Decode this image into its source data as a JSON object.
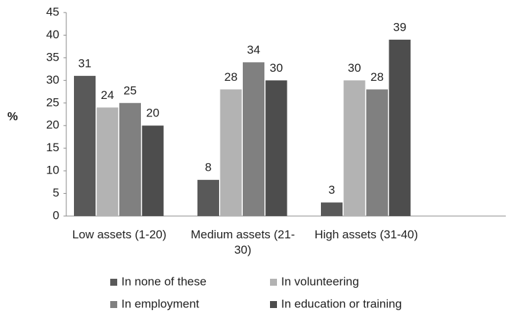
{
  "chart_data": {
    "type": "bar",
    "categories": [
      "Low assets (1-20)",
      "Medium assets (21-30)",
      "High assets (31-40)"
    ],
    "series": [
      {
        "name": "In none of these",
        "color": "#595959",
        "values": [
          31,
          8,
          3
        ]
      },
      {
        "name": "In volunteering",
        "color": "#b3b3b3",
        "values": [
          24,
          28,
          30
        ]
      },
      {
        "name": "In employment",
        "color": "#808080",
        "values": [
          25,
          34,
          28
        ]
      },
      {
        "name": "In education or training",
        "color": "#4d4d4d",
        "values": [
          20,
          30,
          39
        ]
      }
    ],
    "y_label": "%",
    "ylim": [
      0,
      45
    ],
    "yticks": [
      0,
      5,
      10,
      15,
      20,
      25,
      30,
      35,
      40,
      45
    ],
    "grid": false,
    "legend": "bottom"
  }
}
